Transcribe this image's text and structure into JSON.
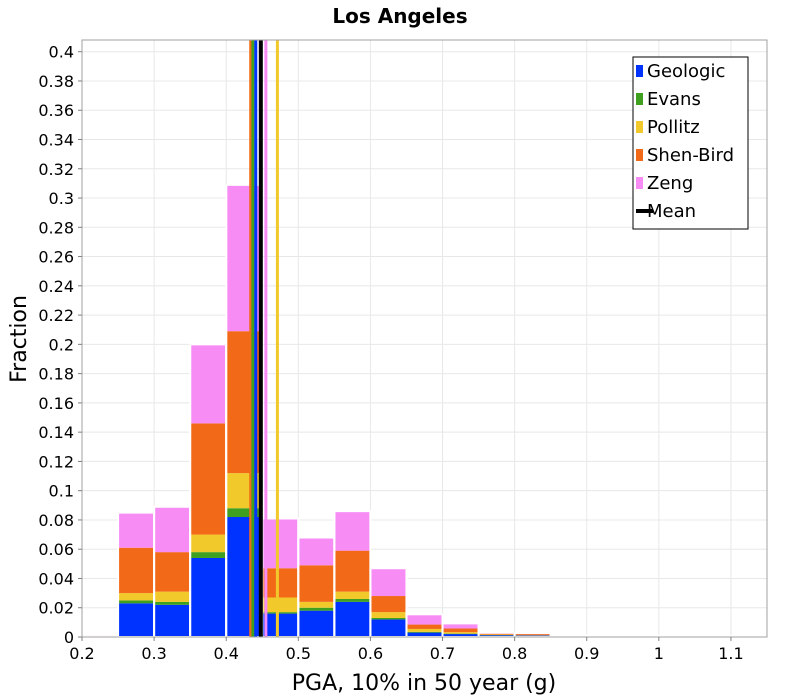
{
  "chart_data": {
    "type": "bar",
    "stacked": true,
    "title": "Los Angeles",
    "xlabel": "PGA, 10% in 50 year (g)",
    "ylabel": "Fraction",
    "xlim": [
      0.2,
      1.15
    ],
    "ylim": [
      0,
      0.408
    ],
    "grid": true,
    "legend_position": "top-right",
    "bin_width": 0.05,
    "x_ticks": [
      "0.2",
      "0.3",
      "0.4",
      "0.5",
      "0.6",
      "0.7",
      "0.8",
      "0.9",
      "1",
      "1.1"
    ],
    "y_ticks": [
      "0",
      "0.02",
      "0.04",
      "0.06",
      "0.08",
      "0.1",
      "0.12",
      "0.14",
      "0.16",
      "0.18",
      "0.2",
      "0.22",
      "0.24",
      "0.26",
      "0.28",
      "0.3",
      "0.32",
      "0.34",
      "0.36",
      "0.38",
      "0.4"
    ],
    "bin_centers": [
      0.225,
      0.275,
      0.325,
      0.375,
      0.425,
      0.475,
      0.525,
      0.575,
      0.625,
      0.675,
      0.725,
      0.775,
      0.825,
      0.875,
      0.925,
      0.975,
      1.025,
      1.075,
      1.125
    ],
    "series": [
      {
        "name": "Geologic",
        "color": "#0033ff",
        "values": [
          0.0003,
          0.023,
          0.022,
          0.054,
          0.082,
          0.016,
          0.018,
          0.024,
          0.012,
          0.003,
          0.002,
          0.0012,
          0.001,
          0.0008,
          0.0002,
          0.0001,
          0.0001,
          0.0001,
          0.0001
        ]
      },
      {
        "name": "Evans",
        "color": "#3f9f1f",
        "values": [
          0.0001,
          0.002,
          0.002,
          0.004,
          0.006,
          0.001,
          0.002,
          0.002,
          0.001,
          0.0005,
          0.0003,
          0.0002,
          0.0001,
          0.0,
          0.0,
          0.0,
          0.0,
          0.0,
          0.0
        ]
      },
      {
        "name": "Pollitz",
        "color": "#f2c92b",
        "values": [
          0.0001,
          0.005,
          0.007,
          0.012,
          0.024,
          0.01,
          0.004,
          0.005,
          0.004,
          0.002,
          0.001,
          0.0003,
          0.0002,
          0.0,
          0.0,
          0.0,
          0.0,
          0.0,
          0.0
        ]
      },
      {
        "name": "Shen-Bird",
        "color": "#f26a18",
        "values": [
          0.0004,
          0.031,
          0.027,
          0.076,
          0.097,
          0.02,
          0.025,
          0.028,
          0.011,
          0.003,
          0.0025,
          0.0005,
          0.0007,
          0.0002,
          0.0001,
          0.0001,
          0.0,
          0.0,
          0.0
        ]
      },
      {
        "name": "Zeng",
        "color": "#f78cf5",
        "values": [
          0.0005,
          0.024,
          0.031,
          0.054,
          0.1,
          0.034,
          0.019,
          0.027,
          0.019,
          0.007,
          0.0035,
          0.0008,
          0.0007,
          0.0003,
          0.0002,
          0.0002,
          0.0001,
          0.0001,
          0.0001
        ]
      }
    ],
    "mean_lines": [
      {
        "name": "Shen-Bird",
        "x": 0.434,
        "color": "#f26a18"
      },
      {
        "name": "Evans",
        "x": 0.437,
        "color": "#3f9f1f"
      },
      {
        "name": "Geologic",
        "x": 0.441,
        "color": "#0033ff"
      },
      {
        "name": "Mean",
        "x": 0.448,
        "color": "#000000"
      },
      {
        "name": "Zeng",
        "x": 0.455,
        "color": "#f78cf5"
      },
      {
        "name": "Pollitz",
        "x": 0.471,
        "color": "#f2c92b"
      }
    ],
    "legend": [
      {
        "label": "Geologic",
        "color": "#0033ff",
        "kind": "patch"
      },
      {
        "label": "Evans",
        "color": "#3f9f1f",
        "kind": "patch"
      },
      {
        "label": "Pollitz",
        "color": "#f2c92b",
        "kind": "patch"
      },
      {
        "label": "Shen-Bird",
        "color": "#f26a18",
        "kind": "patch"
      },
      {
        "label": "Zeng",
        "color": "#f78cf5",
        "kind": "patch"
      },
      {
        "label": "Mean",
        "color": "#000000",
        "kind": "line"
      }
    ]
  }
}
